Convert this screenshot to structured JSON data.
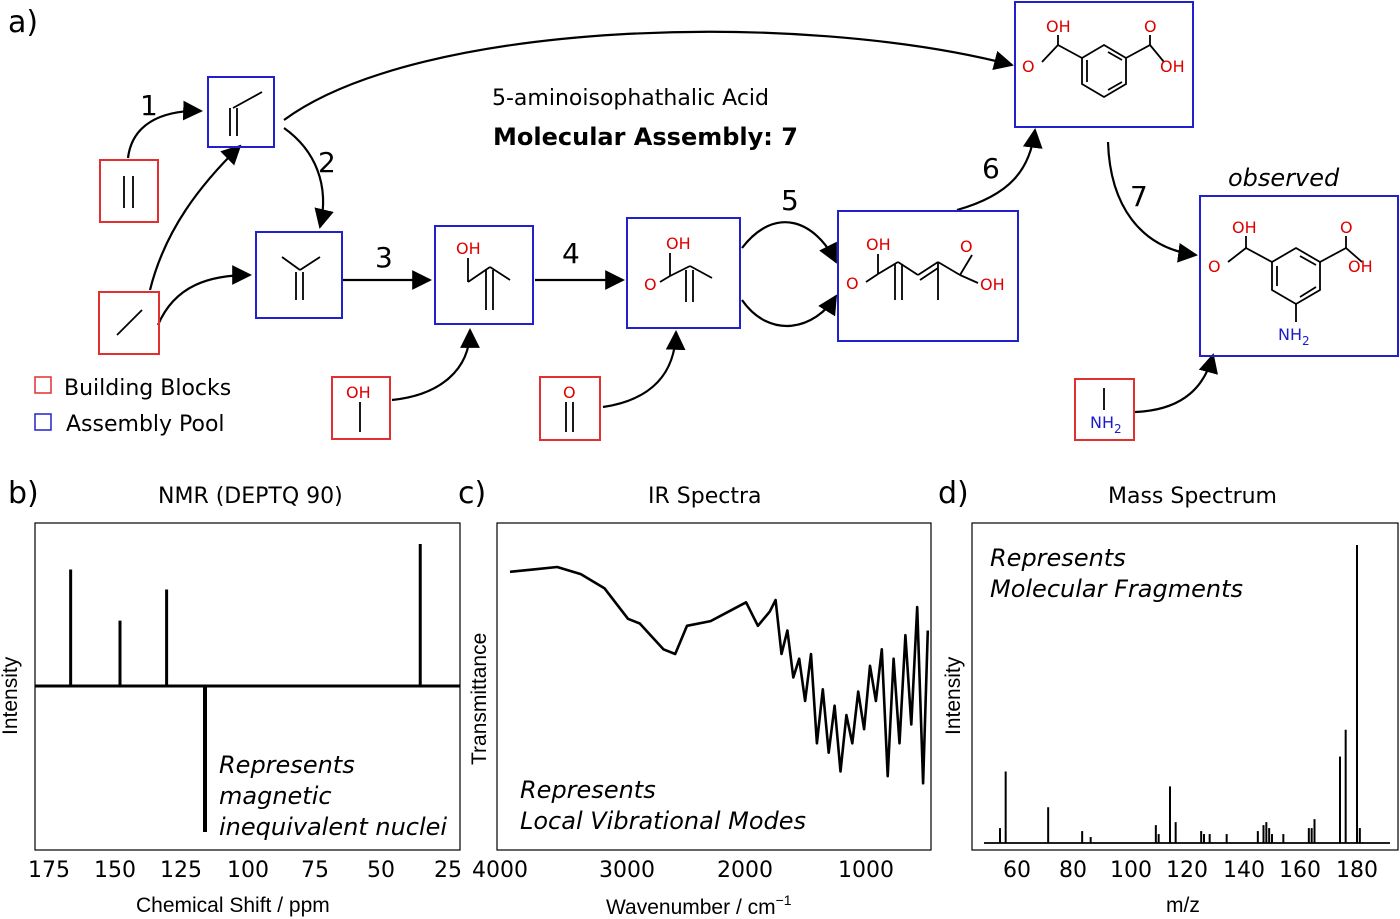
{
  "panel_labels": {
    "a": "a)",
    "b": "b)",
    "c": "c)",
    "d": "d)"
  },
  "assembly": {
    "compound_name": "5-aminoisophathalic Acid",
    "assembly_label": "Molecular Assembly: 7",
    "observed_label": "observed",
    "steps": [
      "1",
      "2",
      "3",
      "4",
      "5",
      "6",
      "7"
    ],
    "legend": {
      "building_blocks": "Building Blocks",
      "assembly_pool": "Assembly Pool"
    },
    "colors": {
      "building_block": "#e03030",
      "assembly_pool": "#2020cc",
      "heteroatom": "#e00000",
      "nitrogen": "#1a1acc"
    },
    "atoms": {
      "OH": "OH",
      "O": "O",
      "NH": "NH",
      "sub2": "2"
    }
  },
  "nmr": {
    "title": "NMR (DEPTQ 90)",
    "xlabel": "Chemical Shift / ppm",
    "ylabel": "Intensity",
    "ticks": [
      "175",
      "150",
      "125",
      "100",
      "75",
      "50",
      "25"
    ],
    "note": [
      "Represents",
      "magnetic",
      "inequivalent nuclei"
    ]
  },
  "ir": {
    "title": "IR Spectra",
    "xlabel": "Wavenumber / cm",
    "xlabel_sup": "−1",
    "ylabel": "Transmittance",
    "ticks": [
      "4000",
      "3000",
      "2000",
      "1000"
    ],
    "note": [
      "Represents",
      "Local Vibrational Modes"
    ]
  },
  "ms": {
    "title": "Mass Spectrum",
    "xlabel": "m/z",
    "ylabel": "Intensity",
    "ticks": [
      "60",
      "80",
      "100",
      "120",
      "140",
      "160",
      "180"
    ],
    "note": [
      "Represents",
      "Molecular Fragments"
    ]
  },
  "chart_data": [
    {
      "type": "bar",
      "title": "NMR (DEPTQ 90)",
      "xlabel": "Chemical Shift / ppm",
      "ylabel": "Intensity",
      "xlim": [
        180,
        25
      ],
      "x_reversed": true,
      "x": [
        167,
        149,
        132,
        118,
        39.5
      ],
      "values": [
        0.82,
        0.46,
        0.68,
        -1.0,
        1.0
      ]
    },
    {
      "type": "line",
      "title": "IR Spectra",
      "xlabel": "Wavenumber / cm−1",
      "ylabel": "Transmittance",
      "xlim": [
        4000,
        450
      ],
      "x_reversed": true,
      "x": [
        4000,
        3800,
        3600,
        3400,
        3200,
        3000,
        2900,
        2700,
        2600,
        2500,
        2300,
        2150,
        2000,
        1900,
        1800,
        1750,
        1700,
        1650,
        1600,
        1550,
        1500,
        1450,
        1400,
        1350,
        1300,
        1250,
        1200,
        1150,
        1100,
        1050,
        1000,
        950,
        900,
        850,
        800,
        750,
        700,
        650,
        600,
        550,
        500,
        460
      ],
      "values": [
        0.95,
        0.96,
        0.97,
        0.94,
        0.88,
        0.75,
        0.73,
        0.62,
        0.6,
        0.72,
        0.74,
        0.78,
        0.82,
        0.72,
        0.78,
        0.83,
        0.6,
        0.7,
        0.5,
        0.58,
        0.4,
        0.6,
        0.22,
        0.45,
        0.18,
        0.38,
        0.1,
        0.34,
        0.22,
        0.44,
        0.28,
        0.55,
        0.4,
        0.62,
        0.08,
        0.58,
        0.22,
        0.68,
        0.3,
        0.8,
        0.05,
        0.7
      ]
    },
    {
      "type": "bar",
      "title": "Mass Spectrum",
      "xlabel": "m/z",
      "ylabel": "Intensity",
      "xlim": [
        50,
        194
      ],
      "x": [
        54,
        56,
        71,
        83,
        86,
        109,
        110,
        114,
        116,
        125,
        126,
        128,
        134,
        145,
        147,
        148,
        149,
        150,
        154,
        163,
        164,
        165,
        174,
        176,
        180,
        181
      ],
      "values": [
        0.05,
        0.24,
        0.12,
        0.04,
        0.02,
        0.06,
        0.03,
        0.19,
        0.07,
        0.04,
        0.03,
        0.03,
        0.03,
        0.04,
        0.06,
        0.07,
        0.05,
        0.03,
        0.03,
        0.05,
        0.05,
        0.08,
        0.29,
        0.38,
        1.0,
        0.05
      ]
    }
  ]
}
